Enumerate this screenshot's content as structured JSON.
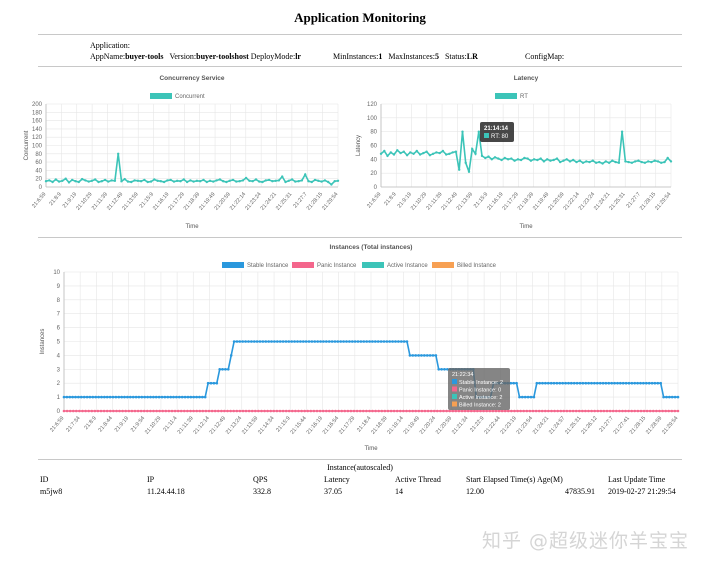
{
  "page": {
    "title": "Application Monitoring",
    "info_label": "Application:",
    "app_name_label": "AppName:",
    "app_name": "buyer-tools",
    "version_label": "Version:",
    "version": "buyer-toolshost",
    "deploy_mode_label": "DeployMode:",
    "deploy_mode": "lr",
    "min_instances_label": "MinInstances:",
    "min_instances": "1",
    "max_instances_label": "MaxInstances:",
    "max_instances": "5",
    "status_label": "Status:",
    "status": "LR",
    "config_map_label": "ConfigMap:"
  },
  "colors": {
    "teal": "#3cc4b8",
    "blue": "#2a98dd",
    "pink": "#f4668c",
    "orange": "#f7a053",
    "grid": "#e6e6e6"
  },
  "chart_data": [
    {
      "type": "line",
      "title": "Concurrency Service",
      "xlabel": "Time",
      "ylabel": "Concurrent",
      "ylim": [
        0,
        200
      ],
      "yticks": [
        0,
        20,
        40,
        60,
        80,
        100,
        120,
        140,
        160,
        180,
        200
      ],
      "xticks": [
        "21:6:59",
        "21:8:9",
        "21:9:19",
        "21:10:29",
        "21:11:39",
        "21:12:49",
        "21:13:59",
        "21:15:9",
        "21:16:19",
        "21:17:29",
        "21:18:39",
        "21:19:49",
        "21:20:59",
        "21:22:14",
        "21:23:24",
        "21:24:21",
        "21:25:31",
        "21:27:7",
        "21:28:15",
        "21:29:54"
      ],
      "legend_position": "top",
      "grid": true,
      "series": [
        {
          "name": "Concurrent",
          "color": "#3cc4b8",
          "values": [
            14,
            16,
            12,
            18,
            13,
            15,
            20,
            11,
            17,
            14,
            12,
            19,
            16,
            13,
            15,
            18,
            12,
            14,
            17,
            13,
            16,
            15,
            80,
            14,
            19,
            13,
            12,
            16,
            15,
            14,
            17,
            12,
            13,
            18,
            15,
            14,
            12,
            16,
            17,
            13,
            15,
            14,
            18,
            12,
            16,
            13,
            15,
            14,
            17,
            12,
            15,
            13,
            16,
            18,
            14,
            12,
            15,
            17,
            13,
            14,
            16,
            22,
            15,
            14,
            18,
            13,
            12,
            16,
            17,
            14,
            15,
            16,
            25,
            12,
            15,
            18,
            13,
            14,
            16,
            30,
            14,
            12,
            17,
            15,
            13,
            16,
            12,
            6,
            14,
            15
          ]
        }
      ]
    },
    {
      "type": "line",
      "title": "Latency",
      "xlabel": "Time",
      "ylabel": "Latency",
      "ylim": [
        0,
        120
      ],
      "yticks": [
        0,
        20,
        40,
        60,
        80,
        100,
        120
      ],
      "xticks": [
        "21:6:59",
        "21:8:9",
        "21:9:19",
        "21:10:29",
        "21:11:39",
        "21:12:49",
        "21:13:59",
        "21:15:9",
        "21:16:19",
        "21:17:29",
        "21:18:39",
        "21:19:49",
        "21:20:59",
        "21:22:14",
        "21:23:24",
        "21:24:21",
        "21:25:31",
        "21:27:7",
        "21:28:15",
        "21:29:54"
      ],
      "legend_position": "top",
      "grid": true,
      "tooltip": {
        "title": "21:14:14",
        "label": "RT: 80"
      },
      "series": [
        {
          "name": "RT",
          "color": "#3cc4b8",
          "values": [
            48,
            52,
            45,
            50,
            47,
            53,
            49,
            51,
            46,
            50,
            48,
            52,
            47,
            49,
            51,
            46,
            48,
            50,
            49,
            52,
            47,
            48,
            50,
            51,
            25,
            80,
            35,
            22,
            55,
            48,
            80,
            45,
            42,
            44,
            40,
            43,
            41,
            39,
            42,
            40,
            41,
            38,
            40,
            39,
            42,
            41,
            38,
            40,
            39,
            41,
            37,
            40,
            38,
            39,
            41,
            36,
            38,
            40,
            37,
            39,
            36,
            38,
            35,
            37,
            36,
            38,
            35,
            36,
            34,
            37,
            35,
            38,
            36,
            35,
            80,
            37,
            36,
            35,
            37,
            38,
            36,
            35,
            37,
            36,
            38,
            37,
            35,
            36,
            42,
            37
          ]
        }
      ]
    },
    {
      "type": "line",
      "title": "Instances (Total instances)",
      "xlabel": "Time",
      "ylabel": "Instances",
      "ylim": [
        0,
        10
      ],
      "yticks": [
        0,
        1,
        2,
        3,
        4,
        5,
        6,
        7,
        8,
        9,
        10
      ],
      "xticks": [
        "21:6:59",
        "21:7:34",
        "21:8:9",
        "21:8:44",
        "21:9:19",
        "21:9:54",
        "21:10:29",
        "21:11:4",
        "21:11:39",
        "21:12:14",
        "21:12:49",
        "21:13:24",
        "21:13:59",
        "21:14:34",
        "21:15:9",
        "21:15:44",
        "21:16:19",
        "21:16:54",
        "21:17:29",
        "21:18:4",
        "21:18:39",
        "21:19:14",
        "21:19:49",
        "21:20:24",
        "21:20:59",
        "21:21:34",
        "21:22:9",
        "21:22:44",
        "21:23:19",
        "21:23:54",
        "21:24:21",
        "21:24:57",
        "21:25:31",
        "21:26:12",
        "21:27:7",
        "21:27:41",
        "21:28:15",
        "21:28:59",
        "21:29:54"
      ],
      "legend_position": "top",
      "grid": true,
      "tooltip": {
        "title": "21:22:34",
        "items": [
          {
            "label": "Stable Instance: 2",
            "color": "#2a98dd"
          },
          {
            "label": "Panic Instance: 0",
            "color": "#f4668c"
          },
          {
            "label": "Active Instance: 2",
            "color": "#3cc4b8"
          },
          {
            "label": "Billed Instance: 2",
            "color": "#f7a053"
          }
        ]
      },
      "series": [
        {
          "name": "Stable Instance",
          "color": "#2a98dd",
          "values": [
            1,
            1,
            1,
            1,
            1,
            1,
            1,
            1,
            1,
            1,
            1,
            1,
            1,
            1,
            1,
            1,
            1,
            1,
            1,
            1,
            1,
            1,
            1,
            1,
            1,
            1,
            1,
            1,
            1,
            1,
            1,
            1,
            1,
            1,
            1,
            1,
            1,
            1,
            1,
            1,
            1,
            1,
            1,
            1,
            1,
            1,
            1,
            1,
            1,
            1,
            2,
            2,
            2,
            2,
            3,
            3,
            3,
            3,
            4,
            5,
            5,
            5,
            5,
            5,
            5,
            5,
            5,
            5,
            5,
            5,
            5,
            5,
            5,
            5,
            5,
            5,
            5,
            5,
            5,
            5,
            5,
            5,
            5,
            5,
            5,
            5,
            5,
            5,
            5,
            5,
            5,
            5,
            5,
            5,
            5,
            5,
            5,
            5,
            5,
            5,
            5,
            5,
            5,
            5,
            5,
            5,
            5,
            5,
            5,
            5,
            5,
            5,
            5,
            5,
            5,
            5,
            5,
            5,
            5,
            5,
            4,
            4,
            4,
            4,
            4,
            4,
            4,
            4,
            4,
            4,
            3,
            3,
            3,
            3,
            3,
            3,
            3,
            3,
            3,
            3,
            3,
            3,
            3,
            1,
            1,
            1,
            1,
            1,
            1,
            2,
            2,
            2,
            2,
            2,
            2,
            2,
            2,
            2,
            1,
            1,
            1,
            1,
            1,
            1,
            2,
            2,
            2,
            2,
            2,
            2,
            2,
            2,
            2,
            2,
            2,
            2,
            2,
            2,
            2,
            2,
            2,
            2,
            2,
            2,
            2,
            2,
            2,
            2,
            2,
            2,
            2,
            2,
            2,
            2,
            2,
            2,
            2,
            2,
            2,
            2,
            2,
            2,
            2,
            2,
            2,
            2,
            2,
            2,
            1,
            1,
            1,
            1,
            1,
            1
          ]
        },
        {
          "name": "Panic Instance",
          "color": "#f4668c",
          "values": [
            0
          ]
        },
        {
          "name": "Active Instance",
          "color": "#3cc4b8",
          "values": []
        },
        {
          "name": "Billed Instance",
          "color": "#f7a053",
          "values": []
        }
      ]
    }
  ],
  "instance_table": {
    "title": "Instance(autoscaled)",
    "headers": [
      "ID",
      "IP",
      "QPS",
      "Latency",
      "Active Thread",
      "Start Elapsed Time(s)",
      "Age(M)",
      "Last Update Time"
    ],
    "rows": [
      [
        "m5jw8",
        "11.24.44.18",
        "332.8",
        "37.05",
        "14",
        "12.00",
        "47835.91",
        "2019-02-27 21:29:54"
      ]
    ]
  },
  "watermark": "知乎 @超级迷你羊宝宝"
}
